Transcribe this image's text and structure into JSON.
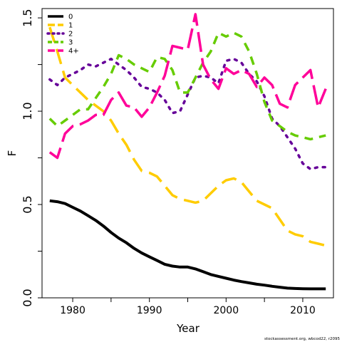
{
  "chart_data": {
    "type": "line",
    "xlabel": "Year",
    "ylabel": "F",
    "xlim": [
      1976,
      2014
    ],
    "ylim": [
      0.0,
      1.55
    ],
    "x_ticks": [
      1980,
      1990,
      2000,
      2010
    ],
    "y_ticks": [
      0.0,
      0.5,
      1.0,
      1.5
    ],
    "x_tick_labels": [
      "1980",
      "1990",
      "2000",
      "2010"
    ],
    "y_tick_labels": [
      "0.0",
      "0.5",
      "1.0",
      "1.5"
    ],
    "legend_position": "top-left",
    "grid": false,
    "credit": "stockassessment.org, wbcod22, r2095",
    "x": [
      1977,
      1978,
      1979,
      1980,
      1981,
      1982,
      1983,
      1984,
      1985,
      1986,
      1987,
      1988,
      1989,
      1990,
      1991,
      1992,
      1993,
      1994,
      1995,
      1996,
      1997,
      1998,
      1999,
      2000,
      2001,
      2002,
      2003,
      2004,
      2005,
      2006,
      2007,
      2008,
      2009,
      2010,
      2011,
      2012,
      2013
    ],
    "series": [
      {
        "name": "0",
        "color": "#000000",
        "dash": "solid",
        "values": [
          0.52,
          0.515,
          0.505,
          0.485,
          0.465,
          0.44,
          0.415,
          0.385,
          0.35,
          0.32,
          0.295,
          0.265,
          0.24,
          0.22,
          0.2,
          0.18,
          0.17,
          0.165,
          0.165,
          0.155,
          0.14,
          0.125,
          0.115,
          0.105,
          0.095,
          0.087,
          0.08,
          0.073,
          0.068,
          0.062,
          0.057,
          0.052,
          0.05,
          0.049,
          0.048,
          0.048,
          0.048
        ]
      },
      {
        "name": "1",
        "color": "#FFCC00",
        "dash": "long",
        "values": [
          1.45,
          1.32,
          1.18,
          1.14,
          1.1,
          1.06,
          1.03,
          1.0,
          0.95,
          0.88,
          0.82,
          0.74,
          0.68,
          0.67,
          0.65,
          0.6,
          0.55,
          0.53,
          0.52,
          0.51,
          0.52,
          0.56,
          0.6,
          0.63,
          0.64,
          0.62,
          0.57,
          0.52,
          0.5,
          0.48,
          0.42,
          0.36,
          0.34,
          0.33,
          0.3,
          0.29,
          0.28
        ]
      },
      {
        "name": "2",
        "color": "#660099",
        "dash": "dot",
        "values": [
          1.17,
          1.14,
          1.18,
          1.2,
          1.22,
          1.25,
          1.24,
          1.26,
          1.28,
          1.25,
          1.22,
          1.18,
          1.13,
          1.12,
          1.1,
          1.06,
          0.99,
          1.0,
          1.09,
          1.18,
          1.19,
          1.18,
          1.15,
          1.27,
          1.28,
          1.26,
          1.2,
          1.16,
          1.08,
          0.96,
          0.92,
          0.86,
          0.8,
          0.72,
          0.69,
          0.7,
          0.7
        ]
      },
      {
        "name": "3",
        "color": "#66CC00",
        "dash": "dash",
        "values": [
          0.96,
          0.92,
          0.95,
          0.98,
          1.01,
          1.01,
          1.07,
          1.13,
          1.2,
          1.3,
          1.28,
          1.25,
          1.23,
          1.21,
          1.29,
          1.28,
          1.22,
          1.1,
          1.1,
          1.18,
          1.26,
          1.32,
          1.42,
          1.4,
          1.42,
          1.4,
          1.32,
          1.2,
          1.05,
          0.95,
          0.92,
          0.89,
          0.87,
          0.86,
          0.85,
          0.86,
          0.87
        ]
      },
      {
        "name": "4+",
        "color": "#FF0099",
        "dash": "longdash",
        "values": [
          0.78,
          0.75,
          0.88,
          0.92,
          0.93,
          0.95,
          0.98,
          0.98,
          1.06,
          1.1,
          1.03,
          1.02,
          0.97,
          1.02,
          1.1,
          1.19,
          1.35,
          1.34,
          1.33,
          1.52,
          1.25,
          1.17,
          1.12,
          1.23,
          1.2,
          1.22,
          1.2,
          1.13,
          1.18,
          1.14,
          1.04,
          1.02,
          1.14,
          1.18,
          1.22,
          1.02,
          1.12
        ]
      }
    ]
  }
}
